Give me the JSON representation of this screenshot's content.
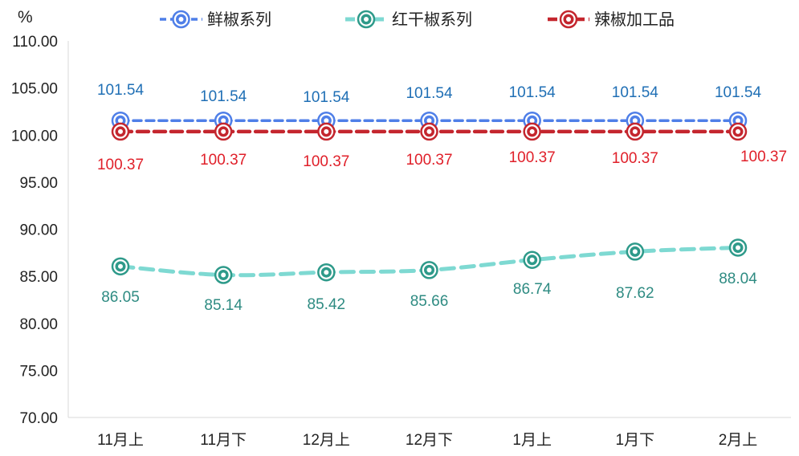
{
  "chart_data": {
    "type": "line",
    "ylabel": "%",
    "ylim": [
      70,
      110
    ],
    "yticks": [
      "70.00",
      "75.00",
      "80.00",
      "85.00",
      "90.00",
      "95.00",
      "100.00",
      "105.00",
      "110.00"
    ],
    "categories": [
      "11月上",
      "11月下",
      "12月上",
      "12月下",
      "1月上",
      "1月下",
      "2月上"
    ],
    "legend_position": "top",
    "grid": false,
    "series": [
      {
        "name": "鲜椒系列",
        "values": [
          101.54,
          101.54,
          101.54,
          101.54,
          101.54,
          101.54,
          101.54
        ],
        "labels": [
          "101.54",
          "101.54",
          "101.54",
          "101.54",
          "101.54",
          "101.54",
          "101.54"
        ],
        "color": "#4F7FE8",
        "label_color": "#1F6FB5"
      },
      {
        "name": "红干椒系列",
        "values": [
          86.05,
          85.14,
          85.42,
          85.66,
          86.74,
          87.62,
          88.04
        ],
        "labels": [
          "86.05",
          "85.14",
          "85.42",
          "85.66",
          "86.74",
          "87.62",
          "88.04"
        ],
        "color": "#7ED9D2",
        "marker_color": "#2E9A8A",
        "label_color": "#2E8B82"
      },
      {
        "name": "辣椒加工品",
        "values": [
          100.37,
          100.37,
          100.37,
          100.37,
          100.37,
          100.37,
          100.37
        ],
        "labels": [
          "100.37",
          "100.37",
          "100.37",
          "100.37",
          "100.37",
          "100.37",
          "100.37"
        ],
        "color": "#C4262E",
        "label_color": "#E0202A"
      }
    ]
  }
}
